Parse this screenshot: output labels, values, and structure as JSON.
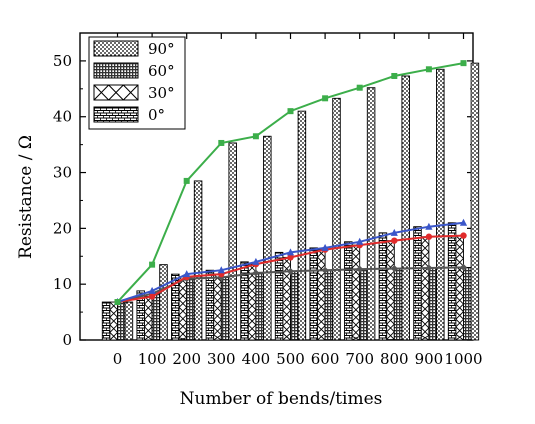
{
  "chart_data": {
    "type": "bar",
    "xlabel": "Number of bends/times",
    "ylabel": "Resistance / Ω",
    "categories": [
      "0",
      "100",
      "200",
      "300",
      "400",
      "500",
      "600",
      "700",
      "800",
      "900",
      "1000"
    ],
    "ylim": [
      0,
      55
    ],
    "yticks": [
      0,
      10,
      20,
      30,
      40,
      50
    ],
    "legend_position": "top-left",
    "series": [
      {
        "name": "0°",
        "values": [
          6.8,
          8.8,
          11.8,
          12.5,
          14.0,
          15.7,
          16.5,
          17.6,
          19.2,
          20.3,
          21.0
        ],
        "color": "#3a56c9",
        "marker": "triangle"
      },
      {
        "name": "30°",
        "values": [
          6.8,
          7.8,
          11.3,
          11.8,
          13.6,
          14.8,
          16.2,
          17.0,
          17.8,
          18.5,
          18.7
        ],
        "color": "#e02b2b",
        "marker": "circle"
      },
      {
        "name": "60°",
        "values": [
          6.8,
          8.3,
          11.0,
          11.2,
          12.0,
          12.3,
          12.5,
          12.7,
          12.8,
          12.9,
          13.0
        ],
        "color": "#555555",
        "marker": "diamond"
      },
      {
        "name": "90°",
        "values": [
          6.8,
          13.5,
          28.5,
          35.3,
          36.5,
          41.0,
          43.3,
          45.2,
          47.3,
          48.5,
          49.6
        ],
        "color": "#3cae4a",
        "marker": "square"
      }
    ],
    "legend_order": [
      "90°",
      "60°",
      "30°",
      "0°"
    ]
  }
}
